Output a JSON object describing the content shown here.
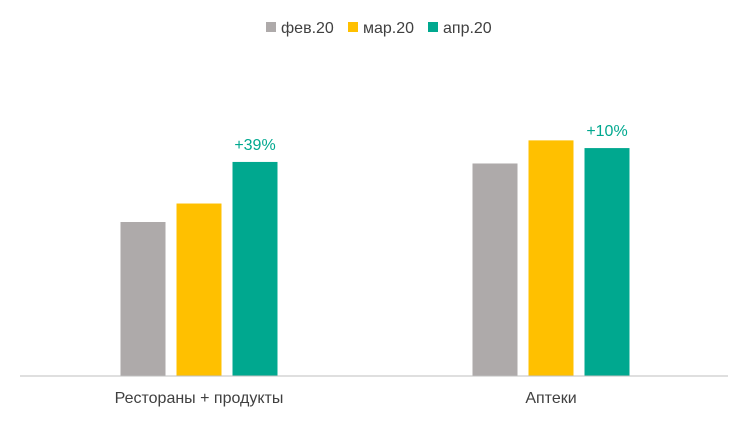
{
  "chart_data": {
    "type": "bar",
    "categories": [
      "Рестораны + продукты",
      "Аптеки"
    ],
    "series": [
      {
        "name": "фев.20",
        "color": "#AEAAAA",
        "values": [
          100,
          138
        ]
      },
      {
        "name": "мар.20",
        "color": "#FFC000",
        "values": [
          112,
          153
        ]
      },
      {
        "name": "апр.20",
        "color": "#00A88F",
        "values": [
          139,
          148
        ]
      }
    ],
    "annotations": [
      {
        "category": "Рестораны + продукты",
        "series": "апр.20",
        "text": "+39%",
        "color": "#00A88F"
      },
      {
        "category": "Аптеки",
        "series": "апр.20",
        "text": "+10%",
        "color": "#00A88F"
      }
    ],
    "ylim": [
      0,
      170
    ],
    "grid": false,
    "legend": "top-center",
    "title": "",
    "xlabel": "",
    "ylabel": ""
  }
}
